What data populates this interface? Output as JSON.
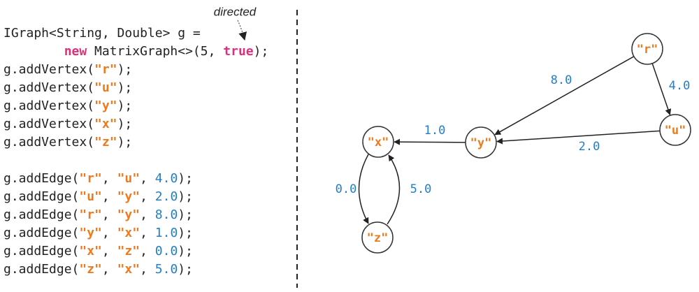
{
  "annotation": "directed",
  "code": {
    "lines": [
      [
        {
          "text": "IGraph<String, Double> g =",
          "kind": "plain"
        }
      ],
      [
        {
          "text": "        ",
          "kind": "plain"
        },
        {
          "text": "new",
          "kind": "keyword"
        },
        {
          "text": " MatrixGraph<>(5, ",
          "kind": "plain"
        },
        {
          "text": "true",
          "kind": "keyword"
        },
        {
          "text": ");",
          "kind": "plain"
        }
      ],
      [
        {
          "text": "g.addVertex(",
          "kind": "plain"
        },
        {
          "text": "\"r\"",
          "kind": "string"
        },
        {
          "text": ");",
          "kind": "plain"
        }
      ],
      [
        {
          "text": "g.addVertex(",
          "kind": "plain"
        },
        {
          "text": "\"u\"",
          "kind": "string"
        },
        {
          "text": ");",
          "kind": "plain"
        }
      ],
      [
        {
          "text": "g.addVertex(",
          "kind": "plain"
        },
        {
          "text": "\"y\"",
          "kind": "string"
        },
        {
          "text": ");",
          "kind": "plain"
        }
      ],
      [
        {
          "text": "g.addVertex(",
          "kind": "plain"
        },
        {
          "text": "\"x\"",
          "kind": "string"
        },
        {
          "text": ");",
          "kind": "plain"
        }
      ],
      [
        {
          "text": "g.addVertex(",
          "kind": "plain"
        },
        {
          "text": "\"z\"",
          "kind": "string"
        },
        {
          "text": ");",
          "kind": "plain"
        }
      ],
      [
        {
          "text": "g.addEdge(",
          "kind": "plain"
        },
        {
          "text": "\"r\"",
          "kind": "string"
        },
        {
          "text": ", ",
          "kind": "plain"
        },
        {
          "text": "\"u\"",
          "kind": "string"
        },
        {
          "text": ", ",
          "kind": "plain"
        },
        {
          "text": "4.0",
          "kind": "number"
        },
        {
          "text": ");",
          "kind": "plain"
        }
      ],
      [
        {
          "text": "g.addEdge(",
          "kind": "plain"
        },
        {
          "text": "\"u\"",
          "kind": "string"
        },
        {
          "text": ", ",
          "kind": "plain"
        },
        {
          "text": "\"y\"",
          "kind": "string"
        },
        {
          "text": ", ",
          "kind": "plain"
        },
        {
          "text": "2.0",
          "kind": "number"
        },
        {
          "text": ");",
          "kind": "plain"
        }
      ],
      [
        {
          "text": "g.addEdge(",
          "kind": "plain"
        },
        {
          "text": "\"r\"",
          "kind": "string"
        },
        {
          "text": ", ",
          "kind": "plain"
        },
        {
          "text": "\"y\"",
          "kind": "string"
        },
        {
          "text": ", ",
          "kind": "plain"
        },
        {
          "text": "8.0",
          "kind": "number"
        },
        {
          "text": ");",
          "kind": "plain"
        }
      ],
      [
        {
          "text": "g.addEdge(",
          "kind": "plain"
        },
        {
          "text": "\"y\"",
          "kind": "string"
        },
        {
          "text": ", ",
          "kind": "plain"
        },
        {
          "text": "\"x\"",
          "kind": "string"
        },
        {
          "text": ", ",
          "kind": "plain"
        },
        {
          "text": "1.0",
          "kind": "number"
        },
        {
          "text": ");",
          "kind": "plain"
        }
      ],
      [
        {
          "text": "g.addEdge(",
          "kind": "plain"
        },
        {
          "text": "\"x\"",
          "kind": "string"
        },
        {
          "text": ", ",
          "kind": "plain"
        },
        {
          "text": "\"z\"",
          "kind": "string"
        },
        {
          "text": ", ",
          "kind": "plain"
        },
        {
          "text": "0.0",
          "kind": "number"
        },
        {
          "text": ");",
          "kind": "plain"
        }
      ],
      [
        {
          "text": "g.addEdge(",
          "kind": "plain"
        },
        {
          "text": "\"z\"",
          "kind": "string"
        },
        {
          "text": ", ",
          "kind": "plain"
        },
        {
          "text": "\"x\"",
          "kind": "string"
        },
        {
          "text": ", ",
          "kind": "plain"
        },
        {
          "text": "5.0",
          "kind": "number"
        },
        {
          "text": ");",
          "kind": "plain"
        }
      ]
    ]
  },
  "graph": {
    "nodes": [
      {
        "label": "\"r\""
      },
      {
        "label": "\"u\""
      },
      {
        "label": "\"y\""
      },
      {
        "label": "\"x\""
      },
      {
        "label": "\"z\""
      }
    ],
    "edges": [
      {
        "label": "4.0"
      },
      {
        "label": "2.0"
      },
      {
        "label": "8.0"
      },
      {
        "label": "1.0"
      },
      {
        "label": "0.0"
      },
      {
        "label": "5.0"
      }
    ]
  }
}
